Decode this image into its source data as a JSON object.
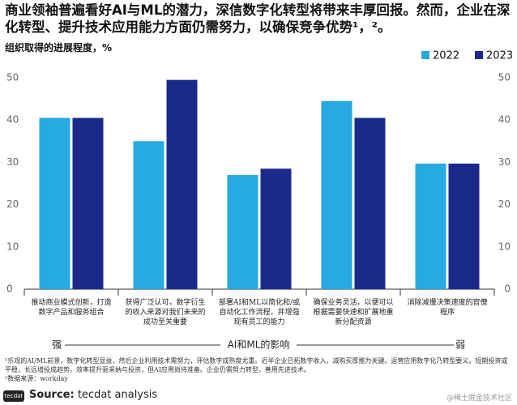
{
  "chart_data": {
    "type": "bar",
    "title": "商业领袖普遍看好AI与ML的潜力，深信数字化转型将带来丰厚回报。然而，企业在深化转型、提升技术应用能力方面仍需努力，以确保竞争优势¹，²。",
    "subtitle": "组织取得的进展程度，%",
    "categories": [
      "推动商业模式创新，打造数字产品和服务组合",
      "获得广泛认可，数字衍生的收入来源对我们未来的成功至关重要",
      "部署AI和ML以简化和/或自动化工作流程，并增强现有员工的能力",
      "确保业务灵活，以便可以根据需要快速和扩展地重新分配资源",
      "消除减慢决策速度的官僚程序"
    ],
    "series": [
      {
        "name": "2022",
        "color": "#27a9e1",
        "values": [
          40.5,
          35,
          27,
          44.5,
          29.7
        ]
      },
      {
        "name": "2023",
        "color": "#1b2a8a",
        "values": [
          40.5,
          49.5,
          28.5,
          40.5,
          29.7
        ]
      }
    ],
    "ylim": [
      0,
      50
    ],
    "yticks": [
      0,
      10,
      20,
      30,
      40,
      50
    ],
    "grid": false,
    "legend": "top-right",
    "x_axis_label": "AI和ML的影响",
    "x_axis_left": "强",
    "x_axis_right": "弱",
    "footnotes": [
      "¹乐观的AI/ML前景，数字化转型显益，然后企业利用技术需努力，评估数字成熟度尤重。近半企业已拓数字收入，减购买厚推为关键。运营应用数字化乃转型要义。短期投资或平稳，长远增投成趋势。效率提升驱采纳与投资，但AI应用尚待准备。企业仍需努力转型，善用先进技术。",
      "²数据来源：workday"
    ],
    "logo": "tecdat",
    "source_label": "Source:",
    "source": "tecdat analysis",
    "watermark": "@稀土掘金技术社区"
  }
}
